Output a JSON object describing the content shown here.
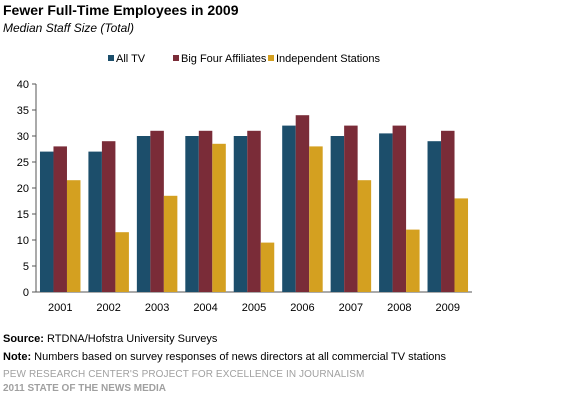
{
  "header": {
    "title": "Fewer Full-Time Employees in 2009",
    "subtitle": "Median Staff Size (Total)"
  },
  "notes": {
    "source_label": "Source:",
    "source_text": "RTDNA/Hofstra University Surveys",
    "note_label": "Note:",
    "note_text": "Numbers based on survey responses of news directors at all commercial TV stations"
  },
  "footer": {
    "line1": "PEW RESEARCH CENTER'S PROJECT FOR EXCELLENCE IN JOURNALISM",
    "line2": "2011 STATE OF THE NEWS MEDIA"
  },
  "chart_data": {
    "type": "bar",
    "title": "Fewer Full-Time Employees in 2009",
    "subtitle": "Median Staff Size (Total)",
    "xlabel": "",
    "ylabel": "",
    "categories": [
      "2001",
      "2002",
      "2003",
      "2004",
      "2005",
      "2006",
      "2007",
      "2008",
      "2009"
    ],
    "ylim": [
      0,
      40
    ],
    "yticks": [
      0,
      5,
      10,
      15,
      20,
      25,
      30,
      35,
      40
    ],
    "grid": false,
    "legend_position": "top",
    "series": [
      {
        "name": "All TV",
        "color": "#1c4e6b",
        "values": [
          27,
          27,
          30,
          30,
          30,
          32,
          30,
          30.5,
          29
        ]
      },
      {
        "name": "Big Four Affiliates",
        "color": "#7a2c38",
        "values": [
          28,
          29,
          31,
          31,
          31,
          34,
          32,
          32,
          31
        ]
      },
      {
        "name": "Independent Stations",
        "color": "#d4a020",
        "values": [
          21.5,
          11.5,
          18.5,
          28.5,
          9.5,
          28,
          21.5,
          12,
          18
        ]
      }
    ]
  }
}
